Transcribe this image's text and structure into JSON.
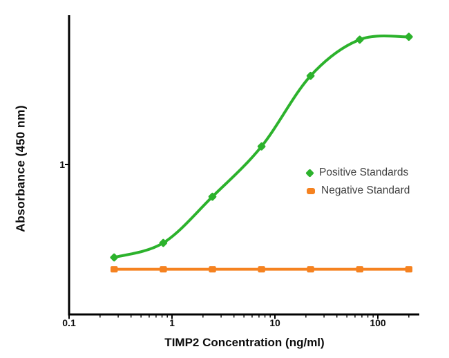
{
  "figure": {
    "background": "#ffffff",
    "axis_color": "#000000"
  },
  "chart_data": {
    "type": "line",
    "title": "",
    "xlabel": "TIMP2 Concentration (ng/ml)",
    "ylabel": "Absorbance (450 nm)",
    "x_scale": "log",
    "y_scale": "log",
    "xlim": [
      0.1,
      250
    ],
    "ylim": [
      0.1,
      10
    ],
    "x_ticks": [
      0.1,
      1,
      10,
      100
    ],
    "x_tick_labels": [
      "0.1",
      "1",
      "10",
      "100"
    ],
    "y_ticks": [
      1
    ],
    "y_tick_labels": [
      "1"
    ],
    "grid": false,
    "legend_position": "right-middle",
    "x": [
      0.274,
      0.823,
      2.47,
      7.41,
      22.2,
      66.7,
      200
    ],
    "series": [
      {
        "name": "Positive Standards",
        "color": "#2cb22c",
        "marker": "diamond",
        "curve": "sigmoid-fit",
        "values": [
          0.24,
          0.3,
          0.61,
          1.32,
          3.9,
          6.8,
          7.1
        ]
      },
      {
        "name": "Negative Standard",
        "color": "#f58220",
        "marker": "square",
        "curve": "flat-line",
        "values": [
          0.2,
          0.2,
          0.2,
          0.2,
          0.2,
          0.2,
          0.2
        ]
      }
    ]
  }
}
